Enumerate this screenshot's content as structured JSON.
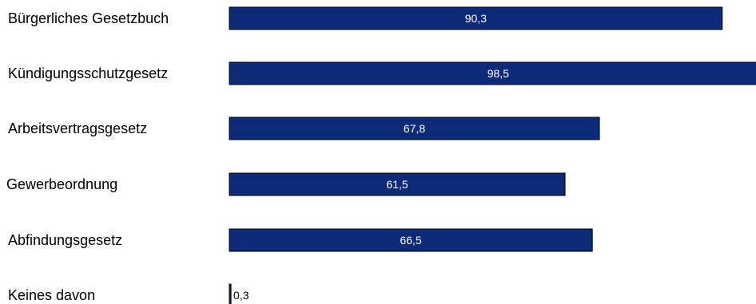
{
  "chart_data": {
    "type": "bar",
    "orientation": "horizontal",
    "categories": [
      "Bürgerliches Gesetzbuch",
      "Kündigungsschutzgesetz",
      "Arbeitsvertragsgesetz",
      "Gewerbeordnung",
      "Abfindungsgesetz",
      "Keines davon"
    ],
    "values": [
      90.3,
      98.5,
      67.8,
      61.5,
      66.5,
      0.3
    ],
    "value_labels": [
      "90,3",
      "98,5",
      "67,8",
      "61,5",
      "66,5",
      "0,3"
    ],
    "xlim": [
      0,
      100
    ],
    "grid": false,
    "legend": "none",
    "colors": {
      "bar_fill": "#0d2a78",
      "bar_stroke": "#000000",
      "inside_label": "#ffffff",
      "outside_label": "#000000"
    }
  }
}
